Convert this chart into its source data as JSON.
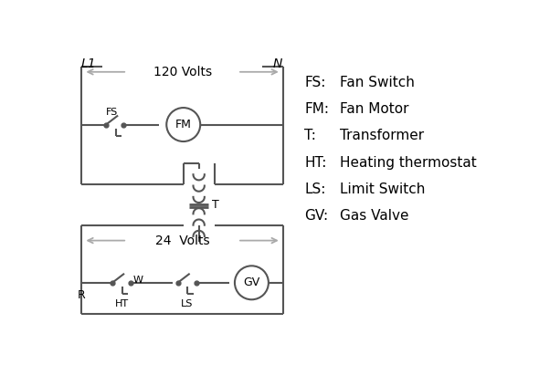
{
  "line_color": "#555555",
  "text_color": "#000000",
  "bg_color": "#ffffff",
  "line_width": 1.5,
  "legend_items": [
    [
      "FS:",
      "Fan Switch"
    ],
    [
      "FM:",
      "Fan Motor"
    ],
    [
      "T:",
      "Transformer"
    ],
    [
      "HT:",
      "Heating thermostat"
    ],
    [
      "LS:",
      "Limit Switch"
    ],
    [
      "GV:",
      "Gas Valve"
    ]
  ],
  "title_L1": "L1",
  "title_N": "N",
  "volts_120": "120 Volts",
  "volts_24": "24  Volts",
  "label_T": "T",
  "label_FS": "FS",
  "label_FM": "FM",
  "label_R": "R",
  "label_W": "W",
  "label_HT": "HT",
  "label_LS": "LS",
  "label_GV": "GV",
  "arrow_color": "#aaaaaa"
}
